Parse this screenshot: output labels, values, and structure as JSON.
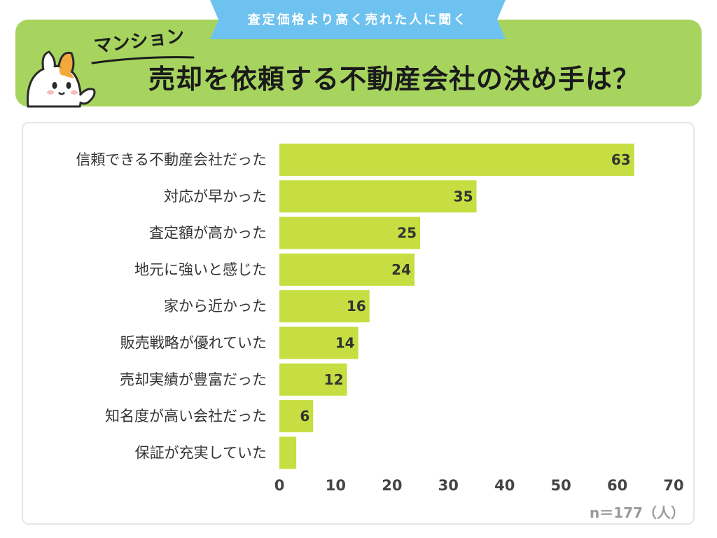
{
  "header": {
    "ribbon": "査定価格より高く売れた人に聞く",
    "subtitle": "マンション",
    "title": "売却を依頼する不動産会社の決め手は？"
  },
  "colors": {
    "bar": "#c6de41",
    "header_green": "#a6d45f",
    "ribbon_blue": "#6ec2ef"
  },
  "chart_data": {
    "type": "bar",
    "orientation": "horizontal",
    "title": "売却を依頼する不動産会社の決め手は？",
    "categories": [
      "信頼できる不動産会社だった",
      "対応が早かった",
      "査定額が高かった",
      "地元に強いと感じた",
      "家から近かった",
      "販売戦略が優れていた",
      "売却実績が豊富だった",
      "知名度が高い会社だった",
      "保証が充実していた"
    ],
    "values": [
      63,
      35,
      25,
      24,
      16,
      14,
      12,
      6,
      3
    ],
    "value_labels": [
      "63",
      "35",
      "25",
      "24",
      "16",
      "14",
      "12",
      "6",
      ""
    ],
    "xlim": [
      0,
      70
    ],
    "xticks": [
      "0",
      "10",
      "20",
      "30",
      "40",
      "50",
      "60",
      "70"
    ],
    "xtick_values": [
      0,
      10,
      20,
      30,
      40,
      50,
      60,
      70
    ],
    "grid": false,
    "legend": "none",
    "note": "n＝177（人）"
  }
}
